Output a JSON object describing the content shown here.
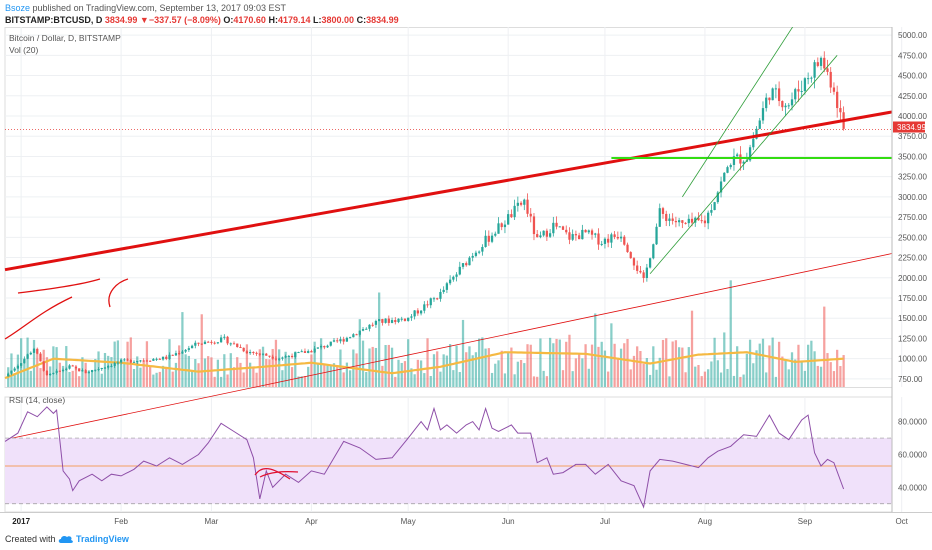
{
  "header": {
    "author": "Bsoze",
    "published_text": "published on TradingView.com, September 13, 2017 09:03 EST",
    "symbol": "BITSTAMP:BTCUSD, D",
    "last": "3834.99",
    "change_arrow": "▼",
    "change": "−337.57 (−8.09%)",
    "o_label": "O:",
    "o": "4170.60",
    "h_label": "H:",
    "h": "4179.14",
    "l_label": "L:",
    "l": "3800.00",
    "c_label": "C:",
    "c": "3834.99"
  },
  "legend": {
    "series_title": "Bitcoin / Dollar, D, BITSTAMP",
    "vol_title": "Vol (20)",
    "rsi_title": "RSI (14, close)"
  },
  "price_label": "3834.99",
  "footer": {
    "created_with": "Created with",
    "brand": "TradingView"
  },
  "colors": {
    "up": "#26a69a",
    "down": "#ef5350",
    "trend": "#e01010",
    "support": "#33dd11",
    "ma": "#f5b942",
    "rsi_line": "#8e4fa8",
    "rsi_band": "#f0e1fa"
  },
  "chart_data": {
    "type": "candlestick",
    "x_ticks": [
      "2017",
      "Feb",
      "Mar",
      "Apr",
      "May",
      "Jun",
      "Jul",
      "Aug",
      "Sep",
      "Oct",
      "Nov"
    ],
    "x_tick_days": [
      0,
      31,
      59,
      90,
      120,
      151,
      181,
      212,
      243,
      273,
      304
    ],
    "last_day": 255,
    "ylim": [
      650,
      5100
    ],
    "y_ticks": [
      "750.00",
      "1000.00",
      "1250.00",
      "1500.00",
      "1750.00",
      "2000.00",
      "2250.00",
      "2500.00",
      "2750.00",
      "3000.00",
      "3250.00",
      "3500.00",
      "3750.00",
      "4000.00",
      "4250.00",
      "4500.00",
      "4750.00",
      "5000.00"
    ],
    "last_price": 3834.99,
    "price_anchors": [
      [
        -5,
        780
      ],
      [
        0,
        960
      ],
      [
        4,
        1130
      ],
      [
        8,
        780
      ],
      [
        15,
        900
      ],
      [
        20,
        830
      ],
      [
        31,
        965
      ],
      [
        45,
        1010
      ],
      [
        55,
        1190
      ],
      [
        63,
        1240
      ],
      [
        70,
        1090
      ],
      [
        80,
        1010
      ],
      [
        90,
        1100
      ],
      [
        100,
        1240
      ],
      [
        110,
        1450
      ],
      [
        120,
        1500
      ],
      [
        130,
        1800
      ],
      [
        140,
        2300
      ],
      [
        150,
        2700
      ],
      [
        156,
        2950
      ],
      [
        160,
        2450
      ],
      [
        165,
        2650
      ],
      [
        170,
        2500
      ],
      [
        175,
        2550
      ],
      [
        180,
        2450
      ],
      [
        186,
        2550
      ],
      [
        190,
        2200
      ],
      [
        193,
        1950
      ],
      [
        198,
        2800
      ],
      [
        205,
        2650
      ],
      [
        212,
        2700
      ],
      [
        220,
        3450
      ],
      [
        225,
        3500
      ],
      [
        232,
        4300
      ],
      [
        238,
        4150
      ],
      [
        244,
        4500
      ],
      [
        248,
        4700
      ],
      [
        252,
        4350
      ],
      [
        255,
        3835
      ]
    ],
    "volume_ylim": [
      650,
      5100
    ],
    "ma_anchors": [
      [
        -5,
        760
      ],
      [
        10,
        1000
      ],
      [
        31,
        950
      ],
      [
        55,
        840
      ],
      [
        75,
        900
      ],
      [
        90,
        950
      ],
      [
        115,
        820
      ],
      [
        130,
        900
      ],
      [
        150,
        1080
      ],
      [
        175,
        1060
      ],
      [
        195,
        940
      ],
      [
        210,
        1050
      ],
      [
        225,
        1080
      ],
      [
        240,
        960
      ],
      [
        255,
        1000
      ]
    ],
    "rsi": {
      "ylim": [
        25,
        95
      ],
      "y_ticks": [
        "40.0000",
        "60.0000",
        "80.0000"
      ],
      "band": [
        30,
        70
      ],
      "mid": 53,
      "anchors": [
        [
          -5,
          68
        ],
        [
          -1,
          73
        ],
        [
          2,
          86
        ],
        [
          5,
          83
        ],
        [
          8,
          89
        ],
        [
          10,
          85
        ],
        [
          11,
          87
        ],
        [
          13,
          50
        ],
        [
          15,
          45
        ],
        [
          16,
          38
        ],
        [
          18,
          44
        ],
        [
          22,
          48
        ],
        [
          25,
          44
        ],
        [
          28,
          48
        ],
        [
          31,
          47
        ],
        [
          35,
          51
        ],
        [
          38,
          56
        ],
        [
          42,
          53
        ],
        [
          46,
          58
        ],
        [
          50,
          54
        ],
        [
          55,
          60
        ],
        [
          58,
          67
        ],
        [
          62,
          79
        ],
        [
          66,
          74
        ],
        [
          70,
          69
        ],
        [
          72,
          58
        ],
        [
          74,
          33
        ],
        [
          76,
          50
        ],
        [
          78,
          40
        ],
        [
          82,
          48
        ],
        [
          86,
          43
        ],
        [
          90,
          50
        ],
        [
          94,
          48
        ],
        [
          100,
          68
        ],
        [
          105,
          64
        ],
        [
          110,
          57
        ],
        [
          115,
          58
        ],
        [
          120,
          70
        ],
        [
          124,
          80
        ],
        [
          126,
          75
        ],
        [
          128,
          88
        ],
        [
          130,
          75
        ],
        [
          132,
          78
        ],
        [
          135,
          73
        ],
        [
          138,
          78
        ],
        [
          140,
          80
        ],
        [
          142,
          75
        ],
        [
          144,
          88
        ],
        [
          146,
          76
        ],
        [
          148,
          74
        ],
        [
          152,
          78
        ],
        [
          154,
          73
        ],
        [
          158,
          73
        ],
        [
          160,
          55
        ],
        [
          163,
          58
        ],
        [
          165,
          48
        ],
        [
          168,
          49
        ],
        [
          172,
          54
        ],
        [
          175,
          54
        ],
        [
          178,
          48
        ],
        [
          182,
          54
        ],
        [
          186,
          44
        ],
        [
          190,
          41
        ],
        [
          193,
          28
        ],
        [
          195,
          50
        ],
        [
          198,
          57
        ],
        [
          202,
          56
        ],
        [
          206,
          54
        ],
        [
          210,
          52
        ],
        [
          213,
          58
        ],
        [
          216,
          62
        ],
        [
          220,
          65
        ],
        [
          224,
          72
        ],
        [
          228,
          71
        ],
        [
          232,
          84
        ],
        [
          235,
          73
        ],
        [
          238,
          69
        ],
        [
          242,
          81
        ],
        [
          244,
          84
        ],
        [
          246,
          61
        ],
        [
          248,
          53
        ],
        [
          250,
          57
        ],
        [
          252,
          55
        ],
        [
          255,
          39
        ]
      ]
    },
    "drawings": {
      "red_trend_main": [
        [
          -5,
          2100
        ],
        [
          270,
          4050
        ]
      ],
      "red_trend_lower": [
        [
          -5,
          0
        ],
        [
          270,
          2300
        ]
      ],
      "green_support": [
        [
          183,
          3480
        ],
        [
          270,
          3480
        ]
      ],
      "green_channel_upper": [
        [
          205,
          3000
        ],
        [
          240,
          5150
        ]
      ],
      "green_channel_lower": [
        [
          195,
          2050
        ],
        [
          253,
          4750
        ]
      ]
    }
  }
}
